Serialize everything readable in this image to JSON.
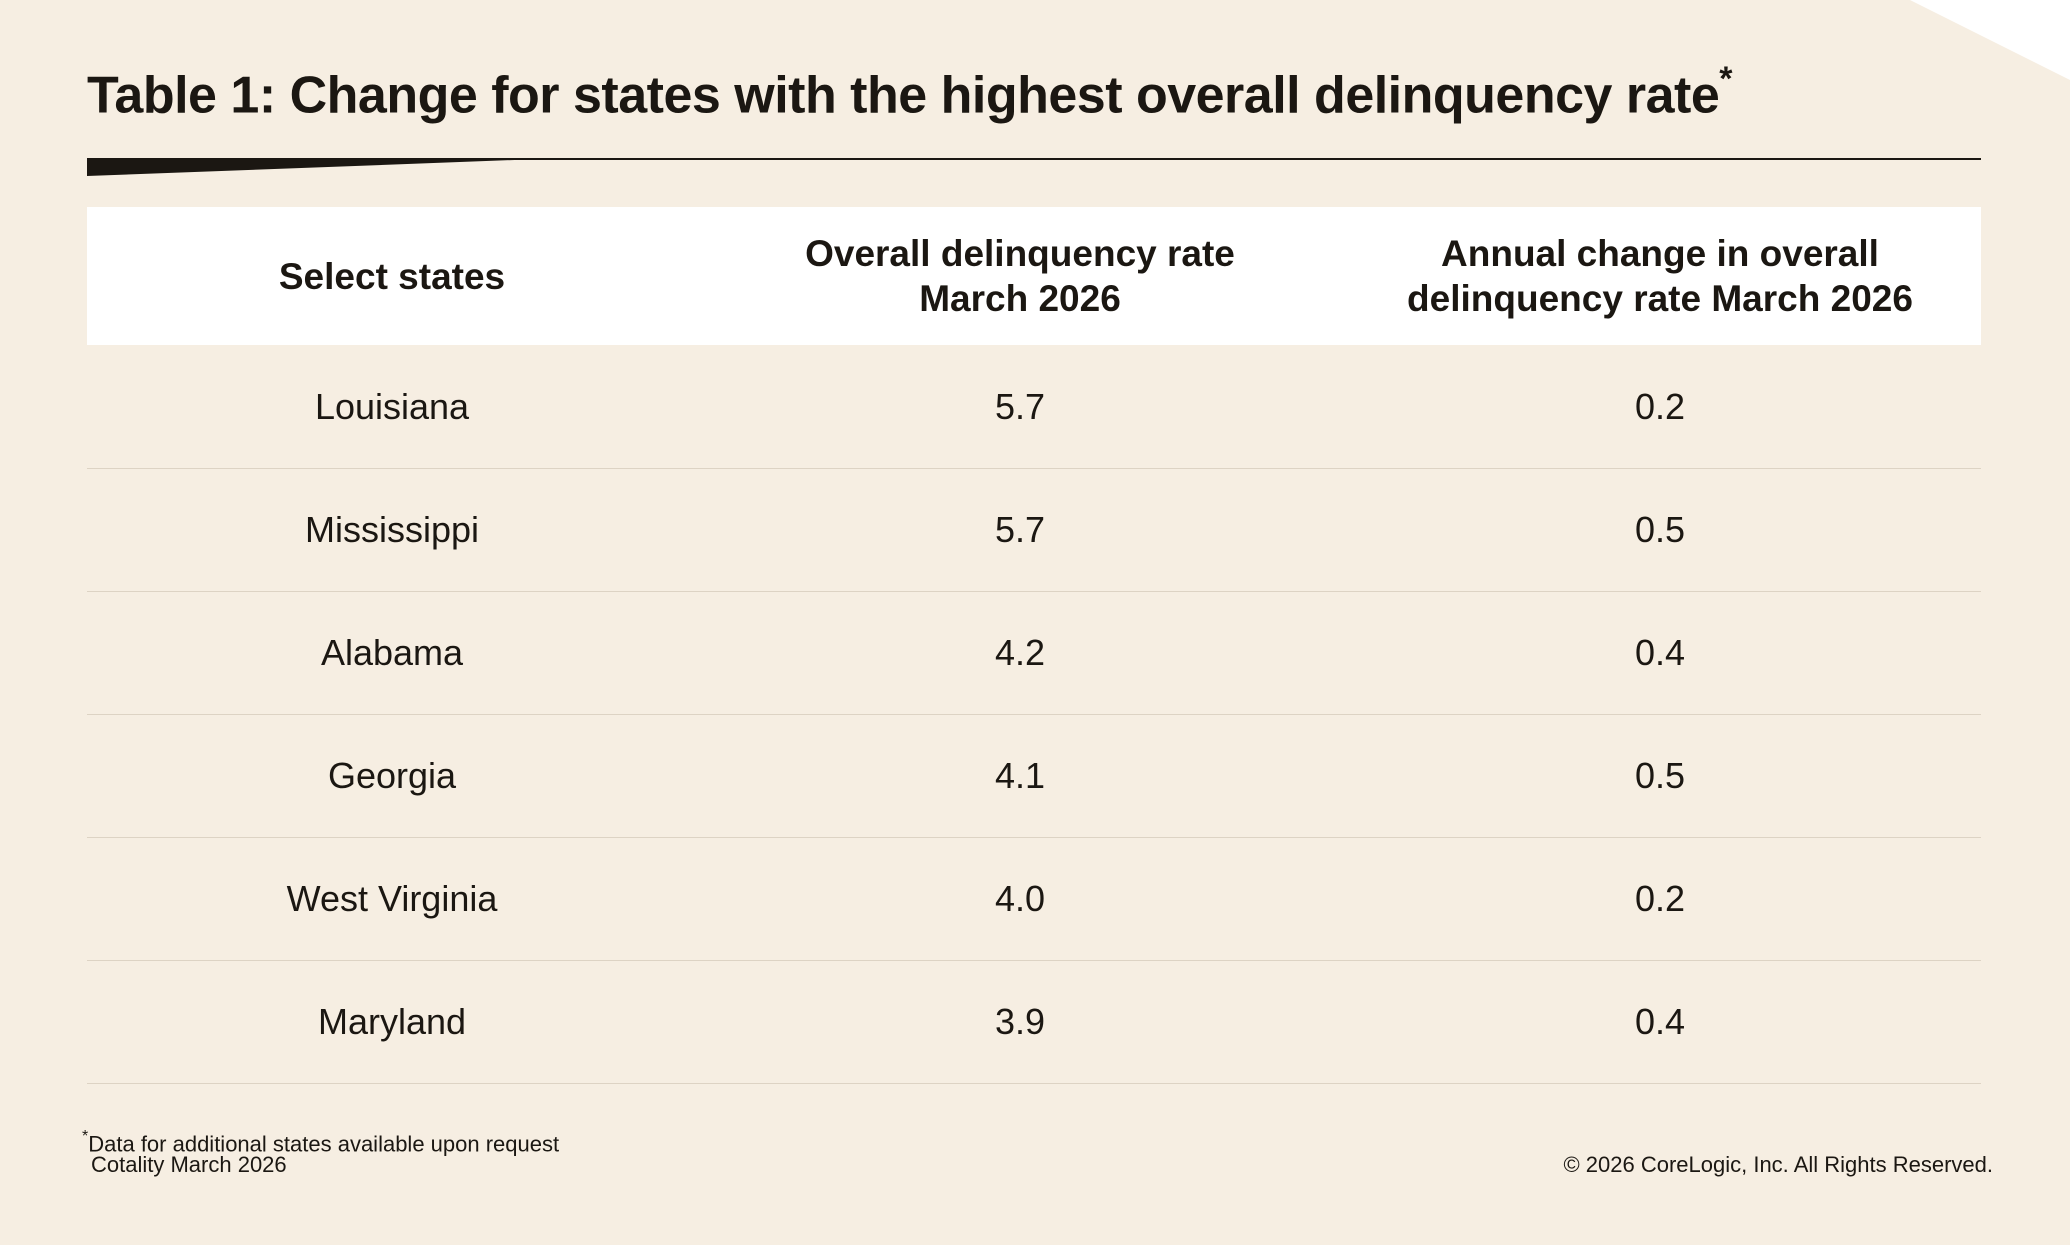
{
  "title": "Table 1: Change for states with the highest overall delinquency rate",
  "title_marker": "*",
  "chart_data": {
    "type": "table",
    "columns": [
      "Select states",
      "Overall delinquency rate\nMarch 2026",
      "Annual change in overall\ndelinquency rate March 2026"
    ],
    "rows": [
      [
        "Louisiana",
        "5.7",
        "0.2"
      ],
      [
        "Mississippi",
        "5.7",
        "0.5"
      ],
      [
        "Alabama",
        "4.2",
        "0.4"
      ],
      [
        "Georgia",
        "4.1",
        "0.5"
      ],
      [
        "West Virginia",
        "4.0",
        "0.2"
      ],
      [
        "Maryland",
        "3.9",
        "0.4"
      ]
    ]
  },
  "footnote_marker": "*",
  "footnote": "Data for additional states available upon request",
  "source": "Cotality March 2026",
  "copyright": "© 2026 CoreLogic, Inc. All Rights Reserved.",
  "colors": {
    "background": "#F6EEE2",
    "header_bg": "#FFFFFF",
    "text": "#1B1712",
    "divider": "#DDD3C4"
  }
}
